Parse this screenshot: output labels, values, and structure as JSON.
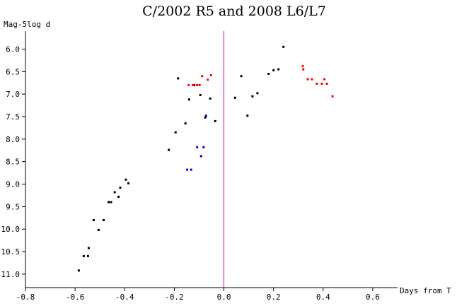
{
  "chart_data": {
    "type": "scatter",
    "title": "C/2002 R5 and 2008 L6/L7",
    "xlabel": "Days from T",
    "ylabel": "Mag-5log d",
    "xlim": [
      -0.8,
      0.7
    ],
    "ylim": [
      11.3,
      5.6
    ],
    "y_inverted": true,
    "x_ticks": [
      -0.8,
      -0.6,
      -0.4,
      -0.2,
      0.0,
      0.2,
      0.4,
      0.6
    ],
    "x_tick_labels": [
      "-0.8",
      "-0.6",
      "-0.4",
      "-0.2",
      "0.0",
      "0.2",
      "0.4",
      "0.6"
    ],
    "y_ticks": [
      6.0,
      6.5,
      7.0,
      7.5,
      8.0,
      8.5,
      9.0,
      9.5,
      10.0,
      10.5,
      11.0
    ],
    "y_tick_labels": [
      "6.0",
      "6.5",
      "7.0",
      "7.5",
      "8.0",
      "8.5",
      "9.0",
      "9.5",
      "10.0",
      "10.5",
      "11.0"
    ],
    "vertical_line": {
      "x": 0.0,
      "color": "#cc00cc"
    },
    "grid": false,
    "series": [
      {
        "color": "#000000",
        "points": [
          [
            -0.585,
            10.92
          ],
          [
            -0.565,
            10.6
          ],
          [
            -0.548,
            10.6
          ],
          [
            -0.545,
            10.42
          ],
          [
            -0.525,
            9.8
          ],
          [
            -0.505,
            10.02
          ],
          [
            -0.485,
            9.8
          ],
          [
            -0.465,
            9.4
          ],
          [
            -0.455,
            9.4
          ],
          [
            -0.44,
            9.18
          ],
          [
            -0.425,
            9.28
          ],
          [
            -0.418,
            9.08
          ],
          [
            -0.395,
            8.9
          ],
          [
            -0.385,
            8.98
          ],
          [
            -0.222,
            8.24
          ],
          [
            -0.195,
            7.85
          ],
          [
            -0.185,
            6.65
          ],
          [
            -0.155,
            7.65
          ],
          [
            -0.14,
            7.12
          ],
          [
            -0.12,
            6.8
          ],
          [
            -0.095,
            7.02
          ],
          [
            -0.075,
            7.52
          ],
          [
            -0.055,
            7.1
          ],
          [
            -0.035,
            7.6
          ],
          [
            0.045,
            7.08
          ],
          [
            0.07,
            6.6
          ],
          [
            0.095,
            7.48
          ],
          [
            0.115,
            7.05
          ],
          [
            0.135,
            6.98
          ],
          [
            0.18,
            6.55
          ],
          [
            0.2,
            6.47
          ],
          [
            0.22,
            6.45
          ],
          [
            0.24,
            5.95
          ]
        ]
      },
      {
        "color": "#ff0000",
        "points": [
          [
            -0.142,
            6.8
          ],
          [
            -0.125,
            6.8
          ],
          [
            -0.108,
            6.8
          ],
          [
            -0.098,
            6.8
          ],
          [
            -0.088,
            6.6
          ],
          [
            -0.065,
            6.68
          ],
          [
            -0.052,
            6.58
          ],
          [
            0.318,
            6.38
          ],
          [
            0.32,
            6.45
          ],
          [
            0.338,
            6.67
          ],
          [
            0.355,
            6.67
          ],
          [
            0.375,
            6.77
          ],
          [
            0.395,
            6.77
          ],
          [
            0.405,
            6.67
          ],
          [
            0.415,
            6.77
          ],
          [
            0.438,
            7.05
          ]
        ]
      },
      {
        "color": "#0000cc",
        "points": [
          [
            -0.148,
            8.68
          ],
          [
            -0.132,
            8.68
          ],
          [
            -0.108,
            8.18
          ],
          [
            -0.092,
            8.38
          ],
          [
            -0.082,
            8.18
          ],
          [
            -0.072,
            7.48
          ]
        ]
      }
    ]
  }
}
